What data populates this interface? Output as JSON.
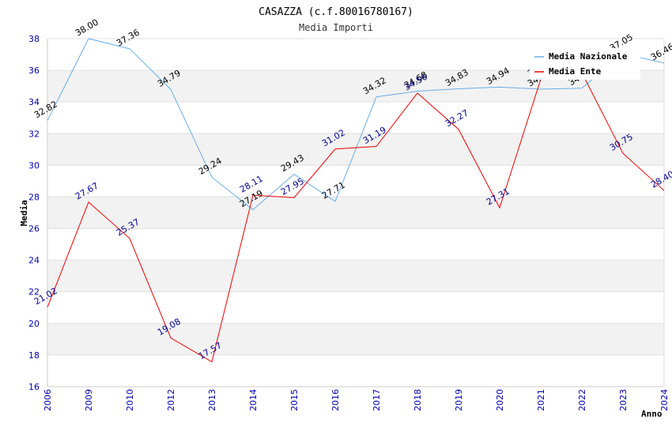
{
  "chart_data": {
    "type": "line",
    "title": "CASAZZA (c.f.80016780167)",
    "subtitle": "Media Importi",
    "xlabel": "Anno",
    "ylabel": "Media",
    "ylim": [
      16,
      38
    ],
    "yticks": [
      16,
      18,
      20,
      22,
      24,
      26,
      28,
      30,
      32,
      34,
      36,
      38
    ],
    "categories": [
      "2006",
      "2009",
      "2010",
      "2012",
      "2013",
      "2014",
      "2015",
      "2016",
      "2017",
      "2018",
      "2019",
      "2020",
      "2021",
      "2022",
      "2023",
      "2024"
    ],
    "series": [
      {
        "name": "Media Nazionale",
        "color": "#6aaee6",
        "label_color": "#000000",
        "values": [
          32.82,
          38.0,
          37.36,
          34.79,
          29.24,
          27.19,
          29.43,
          27.71,
          34.32,
          34.68,
          34.83,
          34.94,
          34.81,
          34.87,
          37.05,
          36.46
        ]
      },
      {
        "name": "Media Ente",
        "color": "#ee0000",
        "label_color": "#00008b",
        "values": [
          21.02,
          27.67,
          25.37,
          19.08,
          17.57,
          28.11,
          27.95,
          31.02,
          31.19,
          34.56,
          32.27,
          27.31,
          35.44,
          35.84,
          30.75,
          28.4
        ]
      }
    ],
    "grid": true,
    "legend": "top-right"
  }
}
